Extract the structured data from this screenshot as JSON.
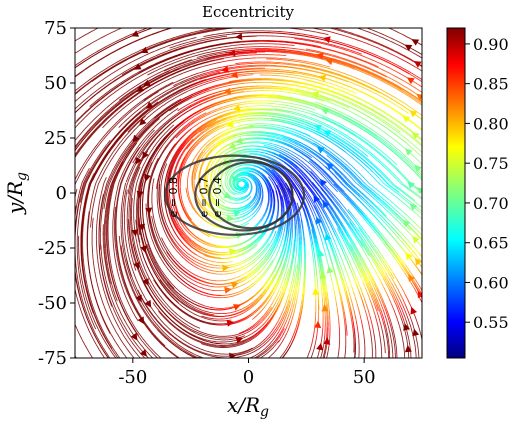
{
  "chart_data": {
    "type": "streamplot",
    "title": "Eccentricity",
    "xlabel": "x/R",
    "xlabel_sub": "g",
    "ylabel": "y/R",
    "ylabel_sub": "g",
    "xlim": [
      -75,
      75
    ],
    "ylim": [
      -75,
      75
    ],
    "x_ticks": [
      -50,
      0,
      50
    ],
    "x_tick_labels": [
      "-50",
      "0",
      "50"
    ],
    "y_ticks": [
      75,
      50,
      25,
      0,
      -25,
      -50,
      -75
    ],
    "y_tick_labels": [
      "75",
      "50",
      "25",
      "0",
      "-25",
      "-50",
      "-75"
    ],
    "colorbar": {
      "colormap": "jet",
      "range": [
        0.505,
        0.92
      ],
      "ticks": [
        0.9,
        0.85,
        0.8,
        0.75,
        0.7,
        0.65,
        0.6,
        0.55
      ],
      "tick_labels": [
        "0.90",
        "0.85",
        "0.80",
        "0.75",
        "0.70",
        "0.65",
        "0.60",
        "0.55"
      ]
    },
    "ellipses": [
      {
        "e": 0.8,
        "label": "e = 0.8",
        "center": [
          -6,
          -1
        ],
        "a": 30,
        "b": 18
      },
      {
        "e": 0.7,
        "label": "e = 0.7",
        "center": [
          -2,
          -1
        ],
        "a": 21,
        "b": 16
      },
      {
        "e": 0.4,
        "label": "e = 0.4",
        "center": [
          1,
          -1
        ],
        "a": 18,
        "b": 15
      }
    ],
    "vortex_center": [
      -3,
      4
    ]
  }
}
